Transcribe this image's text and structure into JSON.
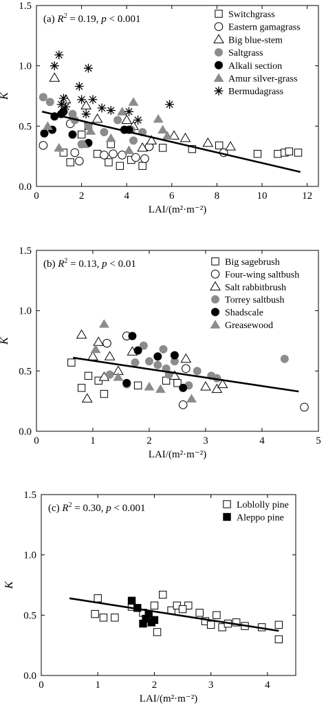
{
  "chart_data": [
    {
      "type": "scatter",
      "annotation": {
        "prefix": "(a) ",
        "r2_value": " = 0.19, ",
        "p_value": " < 0.001"
      },
      "xlabel": "LAI/(m²·m⁻²)",
      "ylabel": "K",
      "xlim": [
        0,
        12.5
      ],
      "ylim": [
        0,
        1.5
      ],
      "xticks": [
        "0",
        "2",
        "4",
        "6",
        "8",
        "10",
        "12"
      ],
      "yticks": [
        "0.0",
        "0.5",
        "1.0",
        "1.5"
      ],
      "legend_position": "top-right",
      "fit_line": {
        "x": [
          0.25,
          11.7
        ],
        "y": [
          0.62,
          0.12
        ]
      },
      "series": [
        {
          "name": "Switchgrass",
          "marker": "square-open",
          "points": [
            [
              1.2,
              0.28
            ],
            [
              1.5,
              0.2
            ],
            [
              2.0,
              0.43
            ],
            [
              2.3,
              0.5
            ],
            [
              2.7,
              0.27
            ],
            [
              3.2,
              0.2
            ],
            [
              3.3,
              0.35
            ],
            [
              3.7,
              0.17
            ],
            [
              4.2,
              0.22
            ],
            [
              4.7,
              0.17
            ],
            [
              5.6,
              0.32
            ],
            [
              6.9,
              0.31
            ],
            [
              8.1,
              0.34
            ],
            [
              9.8,
              0.27
            ],
            [
              10.7,
              0.27
            ],
            [
              11.0,
              0.28
            ],
            [
              11.2,
              0.29
            ],
            [
              11.6,
              0.28
            ]
          ]
        },
        {
          "name": "Eastern gamagrass",
          "marker": "circle-open",
          "points": [
            [
              0.3,
              0.34
            ],
            [
              1.7,
              0.28
            ],
            [
              1.9,
              0.21
            ],
            [
              3.0,
              0.26
            ],
            [
              3.4,
              0.27
            ],
            [
              3.8,
              0.26
            ],
            [
              4.4,
              0.24
            ],
            [
              4.8,
              0.23
            ],
            [
              5.0,
              0.33
            ],
            [
              8.3,
              0.28
            ],
            [
              1.5,
              0.52
            ]
          ]
        },
        {
          "name": "Big blue-stem",
          "marker": "triangle-open",
          "points": [
            [
              0.8,
              0.9
            ],
            [
              1.3,
              0.72
            ],
            [
              2.2,
              0.67
            ],
            [
              2.7,
              0.56
            ],
            [
              4.7,
              0.32
            ],
            [
              5.1,
              0.38
            ],
            [
              6.1,
              0.42
            ],
            [
              6.6,
              0.4
            ],
            [
              7.6,
              0.36
            ],
            [
              8.6,
              0.33
            ],
            [
              4.0,
              0.55
            ],
            [
              4.3,
              0.5
            ]
          ]
        },
        {
          "name": "Saltgrass",
          "marker": "circle-filled",
          "points": [
            [
              0.3,
              0.74
            ],
            [
              0.6,
              0.7
            ],
            [
              1.2,
              0.62
            ],
            [
              1.6,
              0.6
            ],
            [
              1.7,
              0.55
            ],
            [
              2.0,
              0.35
            ],
            [
              2.3,
              0.5
            ],
            [
              3.0,
              0.45
            ],
            [
              3.6,
              0.55
            ],
            [
              4.2,
              0.47
            ],
            [
              4.3,
              0.38
            ],
            [
              4.7,
              0.45
            ]
          ]
        },
        {
          "name": "Alkali section",
          "marker": "circle-black",
          "points": [
            [
              0.35,
              0.44
            ],
            [
              0.7,
              0.47
            ],
            [
              0.8,
              0.58
            ],
            [
              1.1,
              0.6
            ],
            [
              1.2,
              0.62
            ],
            [
              1.6,
              0.43
            ],
            [
              2.3,
              0.36
            ],
            [
              3.9,
              0.47
            ],
            [
              4.1,
              0.47
            ]
          ]
        },
        {
          "name": "Amur silver-grass",
          "marker": "triangle-filled",
          "points": [
            [
              0.5,
              0.5
            ],
            [
              1.0,
              0.32
            ],
            [
              2.1,
              0.35
            ],
            [
              2.4,
              0.46
            ],
            [
              3.3,
              0.4
            ],
            [
              3.8,
              0.62
            ],
            [
              4.1,
              0.3
            ],
            [
              4.3,
              0.7
            ],
            [
              5.4,
              0.56
            ],
            [
              5.6,
              0.47
            ],
            [
              5.8,
              0.42
            ]
          ]
        },
        {
          "name": "Bermudagrass",
          "marker": "asterisk",
          "points": [
            [
              0.8,
              1.0
            ],
            [
              1.0,
              1.09
            ],
            [
              1.2,
              0.73
            ],
            [
              1.1,
              0.68
            ],
            [
              1.3,
              0.66
            ],
            [
              1.9,
              0.83
            ],
            [
              2.0,
              0.72
            ],
            [
              2.3,
              0.98
            ],
            [
              2.5,
              0.72
            ],
            [
              2.9,
              0.65
            ],
            [
              3.3,
              0.63
            ],
            [
              4.1,
              0.62
            ],
            [
              4.5,
              0.55
            ],
            [
              5.9,
              0.68
            ],
            [
              2.2,
              0.6
            ]
          ]
        }
      ]
    },
    {
      "type": "scatter",
      "annotation": {
        "prefix": "(b) ",
        "r2_value": " = 0.13, ",
        "p_value": " < 0.01"
      },
      "xlabel": "LAI/(m²·m⁻²)",
      "ylabel": "K",
      "xlim": [
        0,
        5
      ],
      "ylim": [
        0,
        1.5
      ],
      "xticks": [
        "0",
        "1",
        "2",
        "3",
        "4",
        "5"
      ],
      "yticks": [
        "0.0",
        "0.5",
        "1.0",
        "1.5"
      ],
      "legend_position": "top-right",
      "fit_line": {
        "x": [
          0.65,
          4.65
        ],
        "y": [
          0.61,
          0.33
        ]
      },
      "series": [
        {
          "name": "Big sagebrush",
          "marker": "square-open",
          "points": [
            [
              0.62,
              0.57
            ],
            [
              0.8,
              0.36
            ],
            [
              0.92,
              0.46
            ],
            [
              1.1,
              0.42
            ],
            [
              1.2,
              0.31
            ],
            [
              1.8,
              0.38
            ],
            [
              2.3,
              0.42
            ],
            [
              2.5,
              0.4
            ]
          ]
        },
        {
          "name": "Four-wing saltbush",
          "marker": "circle-open",
          "points": [
            [
              1.25,
              0.73
            ],
            [
              1.6,
              0.79
            ],
            [
              2.6,
              0.22
            ],
            [
              2.65,
              0.52
            ],
            [
              4.75,
              0.2
            ]
          ]
        },
        {
          "name": "Salt rabbitbrush",
          "marker": "triangle-open",
          "points": [
            [
              0.8,
              0.8
            ],
            [
              0.9,
              0.27
            ],
            [
              1.0,
              0.62
            ],
            [
              1.1,
              0.74
            ],
            [
              1.2,
              0.45
            ],
            [
              1.3,
              0.62
            ],
            [
              1.45,
              0.5
            ],
            [
              1.7,
              0.66
            ],
            [
              2.45,
              0.46
            ],
            [
              2.65,
              0.6
            ],
            [
              3.0,
              0.37
            ],
            [
              3.2,
              0.35
            ],
            [
              3.3,
              0.39
            ]
          ]
        },
        {
          "name": "Torrey saltbush",
          "marker": "circle-filled",
          "points": [
            [
              1.3,
              0.47
            ],
            [
              1.6,
              0.39
            ],
            [
              1.75,
              0.57
            ],
            [
              1.9,
              0.71
            ],
            [
              2.0,
              0.58
            ],
            [
              2.15,
              0.55
            ],
            [
              2.25,
              0.68
            ],
            [
              2.3,
              0.52
            ],
            [
              2.35,
              0.47
            ],
            [
              2.45,
              0.58
            ],
            [
              2.7,
              0.38
            ],
            [
              2.85,
              0.5
            ],
            [
              3.1,
              0.46
            ],
            [
              3.2,
              0.44
            ],
            [
              4.4,
              0.6
            ]
          ]
        },
        {
          "name": "Shadscale",
          "marker": "circle-black",
          "points": [
            [
              1.6,
              0.4
            ],
            [
              1.7,
              0.79
            ],
            [
              1.8,
              0.67
            ],
            [
              2.15,
              0.62
            ],
            [
              2.45,
              0.63
            ],
            [
              2.6,
              0.36
            ]
          ]
        },
        {
          "name": "Greasewood",
          "marker": "triangle-filled",
          "points": [
            [
              1.05,
              0.68
            ],
            [
              1.2,
              0.89
            ],
            [
              1.45,
              0.45
            ],
            [
              2.0,
              0.37
            ],
            [
              2.2,
              0.35
            ],
            [
              2.75,
              0.27
            ]
          ]
        }
      ]
    },
    {
      "type": "scatter",
      "annotation": {
        "prefix": "(c) ",
        "r2_value": " = 0.30, ",
        "p_value": " < 0.001"
      },
      "xlabel": "LAI/(m²·m⁻²)",
      "ylabel": "K",
      "xlim": [
        0,
        4.5
      ],
      "ylim": [
        0,
        1.5
      ],
      "xticks": [
        "0",
        "1",
        "2",
        "3",
        "4"
      ],
      "yticks": [
        "0.0",
        "0.5",
        "1.0",
        "1.5"
      ],
      "legend_position": "top-right",
      "fit_line": {
        "x": [
          0.5,
          4.2
        ],
        "y": [
          0.64,
          0.37
        ]
      },
      "series": [
        {
          "name": "Loblolly pine",
          "marker": "square-open",
          "points": [
            [
              0.95,
              0.51
            ],
            [
              1.0,
              0.64
            ],
            [
              1.1,
              0.48
            ],
            [
              1.3,
              0.48
            ],
            [
              1.6,
              0.57
            ],
            [
              1.8,
              0.52
            ],
            [
              2.0,
              0.58
            ],
            [
              2.05,
              0.36
            ],
            [
              2.15,
              0.67
            ],
            [
              2.3,
              0.54
            ],
            [
              2.4,
              0.58
            ],
            [
              2.6,
              0.58
            ],
            [
              2.8,
              0.52
            ],
            [
              2.9,
              0.45
            ],
            [
              3.0,
              0.42
            ],
            [
              3.1,
              0.5
            ],
            [
              3.2,
              0.4
            ],
            [
              3.3,
              0.43
            ],
            [
              3.45,
              0.44
            ],
            [
              3.6,
              0.41
            ],
            [
              3.9,
              0.4
            ],
            [
              4.2,
              0.42
            ],
            [
              4.2,
              0.3
            ],
            [
              2.5,
              0.55
            ]
          ]
        },
        {
          "name": "Aleppo pine",
          "marker": "square-filled",
          "points": [
            [
              1.6,
              0.62
            ],
            [
              1.7,
              0.56
            ],
            [
              1.8,
              0.43
            ],
            [
              1.85,
              0.47
            ],
            [
              1.9,
              0.51
            ],
            [
              1.95,
              0.44
            ],
            [
              2.0,
              0.46
            ]
          ]
        }
      ]
    }
  ]
}
